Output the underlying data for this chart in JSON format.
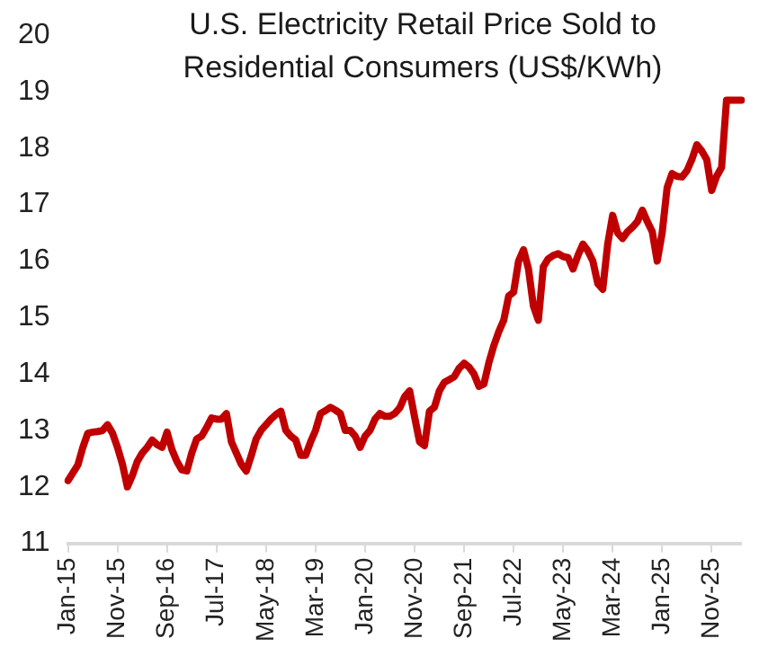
{
  "chart_data": {
    "type": "line",
    "title": "U.S. Electricity Retail Price Sold to Residential Consumers (US$/KWh)",
    "categories": [
      "Jan-15",
      null,
      null,
      null,
      null,
      null,
      null,
      null,
      null,
      null,
      "Nov-15",
      null,
      null,
      null,
      null,
      null,
      null,
      null,
      null,
      null,
      "Sep-16",
      null,
      null,
      null,
      null,
      null,
      null,
      null,
      null,
      null,
      "Jul-17",
      null,
      null,
      null,
      null,
      null,
      null,
      null,
      null,
      null,
      "May-18",
      null,
      null,
      null,
      null,
      null,
      null,
      null,
      null,
      null,
      "Mar-19",
      null,
      null,
      null,
      null,
      null,
      null,
      null,
      null,
      null,
      "Jan-20",
      null,
      null,
      null,
      null,
      null,
      null,
      null,
      null,
      null,
      "Nov-20",
      null,
      null,
      null,
      null,
      null,
      null,
      null,
      null,
      null,
      "Sep-21",
      null,
      null,
      null,
      null,
      null,
      null,
      null,
      null,
      null,
      "Jul-22",
      null,
      null,
      null,
      null,
      null,
      null,
      null,
      null,
      null,
      "May-23",
      null,
      null,
      null,
      null,
      null,
      null,
      null,
      null,
      null,
      "Mar-24",
      null,
      null,
      null,
      null,
      null,
      null,
      null,
      null,
      null,
      "Jan-25",
      null,
      null,
      null,
      null,
      null,
      null,
      null,
      null,
      null,
      "Nov-25",
      null,
      null,
      null,
      null,
      null,
      null
    ],
    "series": [
      {
        "color": "#c00000",
        "values": [
          12.11,
          12.25,
          12.39,
          12.7,
          12.95,
          12.97,
          12.98,
          13.0,
          13.1,
          12.95,
          12.7,
          12.4,
          12.0,
          12.2,
          12.45,
          12.6,
          12.7,
          12.83,
          12.75,
          12.7,
          12.97,
          12.66,
          12.45,
          12.3,
          12.28,
          12.6,
          12.85,
          12.9,
          13.05,
          13.22,
          13.2,
          13.2,
          13.3,
          12.8,
          12.6,
          12.4,
          12.28,
          12.55,
          12.85,
          13.0,
          13.1,
          13.2,
          13.28,
          13.34,
          13.0,
          12.9,
          12.83,
          12.56,
          12.56,
          12.8,
          13.0,
          13.3,
          13.35,
          13.41,
          13.36,
          13.3,
          13.0,
          13.0,
          12.9,
          12.7,
          12.9,
          13.0,
          13.2,
          13.3,
          13.25,
          13.25,
          13.3,
          13.4,
          13.6,
          13.7,
          13.24,
          12.8,
          12.73,
          13.34,
          13.41,
          13.7,
          13.85,
          13.9,
          13.95,
          14.1,
          14.19,
          14.12,
          14.0,
          13.78,
          13.82,
          14.2,
          14.5,
          14.75,
          14.95,
          15.38,
          15.45,
          16.0,
          16.2,
          15.86,
          15.2,
          14.95,
          15.9,
          16.04,
          16.1,
          16.13,
          16.08,
          16.06,
          15.86,
          16.1,
          16.3,
          16.18,
          16.0,
          15.6,
          15.5,
          16.3,
          16.81,
          16.5,
          16.4,
          16.52,
          16.6,
          16.7,
          16.9,
          16.7,
          16.52,
          16.0,
          16.5,
          17.3,
          17.55,
          17.5,
          17.49,
          17.6,
          17.8,
          18.06,
          17.95,
          17.8,
          17.25,
          17.5,
          17.66,
          18.85,
          18.85,
          18.85,
          18.85
        ]
      }
    ],
    "ylim": [
      11,
      20
    ],
    "yticks": [
      11,
      12,
      13,
      14,
      15,
      16,
      17,
      18,
      19,
      20
    ],
    "grid": false,
    "legend": false,
    "marker": "none",
    "line_style": "solid"
  }
}
